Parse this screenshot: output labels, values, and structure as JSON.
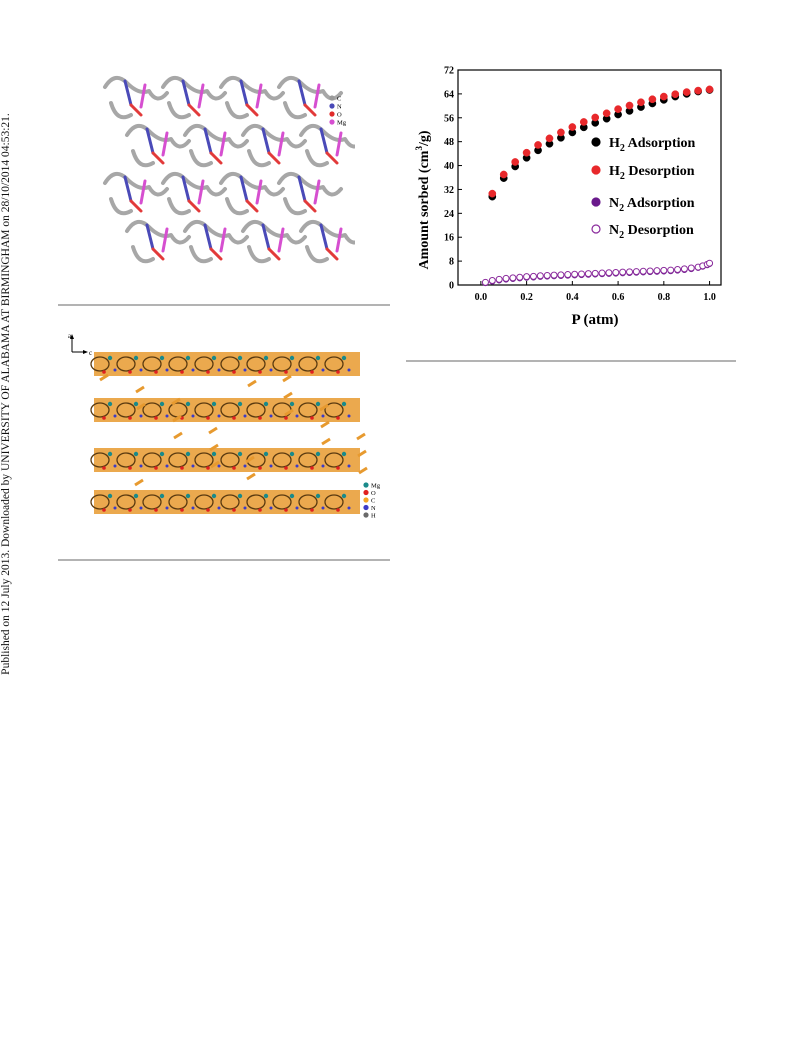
{
  "sidebar_text": "Published on 12 July 2013. Downloaded by UNIVERSITY OF ALABAMA AT BIRMINGHAM on 28/10/2014 04:53:21.",
  "figure1_legend": [
    {
      "label": "C",
      "color": "#9a9a9a"
    },
    {
      "label": "N",
      "color": "#4a4ab8"
    },
    {
      "label": "O",
      "color": "#e02a2a"
    },
    {
      "label": "Mg",
      "color": "#d64fd0"
    }
  ],
  "figure2_axes": {
    "a": "a",
    "c": "c"
  },
  "figure2_legend": [
    {
      "label": "Mg",
      "color": "#1a8a8a"
    },
    {
      "label": "O",
      "color": "#e02020"
    },
    {
      "label": "C",
      "color": "#f5a623"
    },
    {
      "label": "N",
      "color": "#3c3cc8"
    },
    {
      "label": "H",
      "color": "#6a6a6a"
    }
  ],
  "chart_data": {
    "type": "scatter",
    "title": "",
    "xlabel": "P (atm)",
    "ylabel": "Amount sorbed (cm³/g)",
    "xlim": [
      -0.1,
      1.05
    ],
    "ylim": [
      0,
      72
    ],
    "xticks": [
      "0.0",
      "0.2",
      "0.4",
      "0.6",
      "0.8",
      "1.0"
    ],
    "yticks": [
      "0",
      "8",
      "16",
      "24",
      "32",
      "40",
      "48",
      "56",
      "64",
      "72"
    ],
    "legend_position": "right",
    "series": [
      {
        "name": "H2 Adsorption",
        "label_main": "H",
        "label_sub": "2",
        "label_rest": " Adsorption",
        "color": "#000000",
        "marker": "filled",
        "x": [
          0.05,
          0.1,
          0.15,
          0.2,
          0.25,
          0.3,
          0.35,
          0.4,
          0.45,
          0.5,
          0.55,
          0.6,
          0.65,
          0.7,
          0.75,
          0.8,
          0.85,
          0.9,
          0.95,
          1.0
        ],
        "y": [
          29.6,
          35.8,
          39.7,
          42.6,
          45.1,
          47.3,
          49.3,
          51.1,
          52.8,
          54.3,
          55.7,
          57.1,
          58.3,
          59.6,
          60.8,
          62.0,
          63.1,
          64.0,
          64.8,
          65.3
        ]
      },
      {
        "name": "H2 Desorption",
        "label_main": "H",
        "label_sub": "2",
        "label_rest": " Desorption",
        "color": "#e8282b",
        "marker": "filled",
        "x": [
          0.05,
          0.1,
          0.15,
          0.2,
          0.25,
          0.3,
          0.35,
          0.4,
          0.45,
          0.5,
          0.55,
          0.6,
          0.65,
          0.7,
          0.75,
          0.8,
          0.85,
          0.9,
          0.95,
          1.0
        ],
        "y": [
          30.6,
          37.0,
          41.2,
          44.3,
          46.9,
          49.1,
          51.1,
          52.9,
          54.6,
          56.1,
          57.5,
          58.9,
          60.1,
          61.2,
          62.2,
          63.1,
          63.9,
          64.6,
          65.1,
          65.5
        ]
      },
      {
        "name": "N2 Adsorption",
        "label_main": "N",
        "label_sub": "2",
        "label_rest": " Adsorption",
        "color": "#6a1a8c",
        "marker": "filled",
        "x": [
          0.02,
          0.05,
          0.08,
          0.11,
          0.14,
          0.17,
          0.2,
          0.23,
          0.26,
          0.29,
          0.32,
          0.35,
          0.38,
          0.41,
          0.44,
          0.47,
          0.5,
          0.53,
          0.56,
          0.59,
          0.62,
          0.65,
          0.68,
          0.71,
          0.74,
          0.77,
          0.8,
          0.83,
          0.86,
          0.89,
          0.92,
          0.95,
          0.97,
          0.99,
          1.0
        ],
        "y": [
          0.7,
          1.2,
          1.6,
          1.9,
          2.1,
          2.3,
          2.5,
          2.6,
          2.8,
          2.9,
          3.0,
          3.1,
          3.2,
          3.3,
          3.4,
          3.5,
          3.6,
          3.7,
          3.8,
          3.9,
          4.0,
          4.1,
          4.2,
          4.3,
          4.4,
          4.5,
          4.6,
          4.7,
          4.9,
          5.1,
          5.4,
          5.8,
          6.2,
          6.7,
          7.1
        ]
      },
      {
        "name": "N2 Desorption",
        "label_main": "N",
        "label_sub": "2",
        "label_rest": " Desorption",
        "color": "#8a2a9c",
        "marker": "open",
        "x": [
          0.02,
          0.05,
          0.08,
          0.11,
          0.14,
          0.17,
          0.2,
          0.23,
          0.26,
          0.29,
          0.32,
          0.35,
          0.38,
          0.41,
          0.44,
          0.47,
          0.5,
          0.53,
          0.56,
          0.59,
          0.62,
          0.65,
          0.68,
          0.71,
          0.74,
          0.77,
          0.8,
          0.83,
          0.86,
          0.89,
          0.92,
          0.95,
          0.97,
          0.99,
          1.0
        ],
        "y": [
          0.9,
          1.5,
          1.9,
          2.2,
          2.4,
          2.6,
          2.8,
          2.9,
          3.1,
          3.2,
          3.3,
          3.4,
          3.5,
          3.6,
          3.7,
          3.8,
          3.9,
          4.0,
          4.1,
          4.2,
          4.3,
          4.4,
          4.5,
          4.6,
          4.7,
          4.8,
          4.9,
          5.0,
          5.2,
          5.4,
          5.7,
          6.0,
          6.4,
          6.9,
          7.3
        ]
      }
    ]
  }
}
